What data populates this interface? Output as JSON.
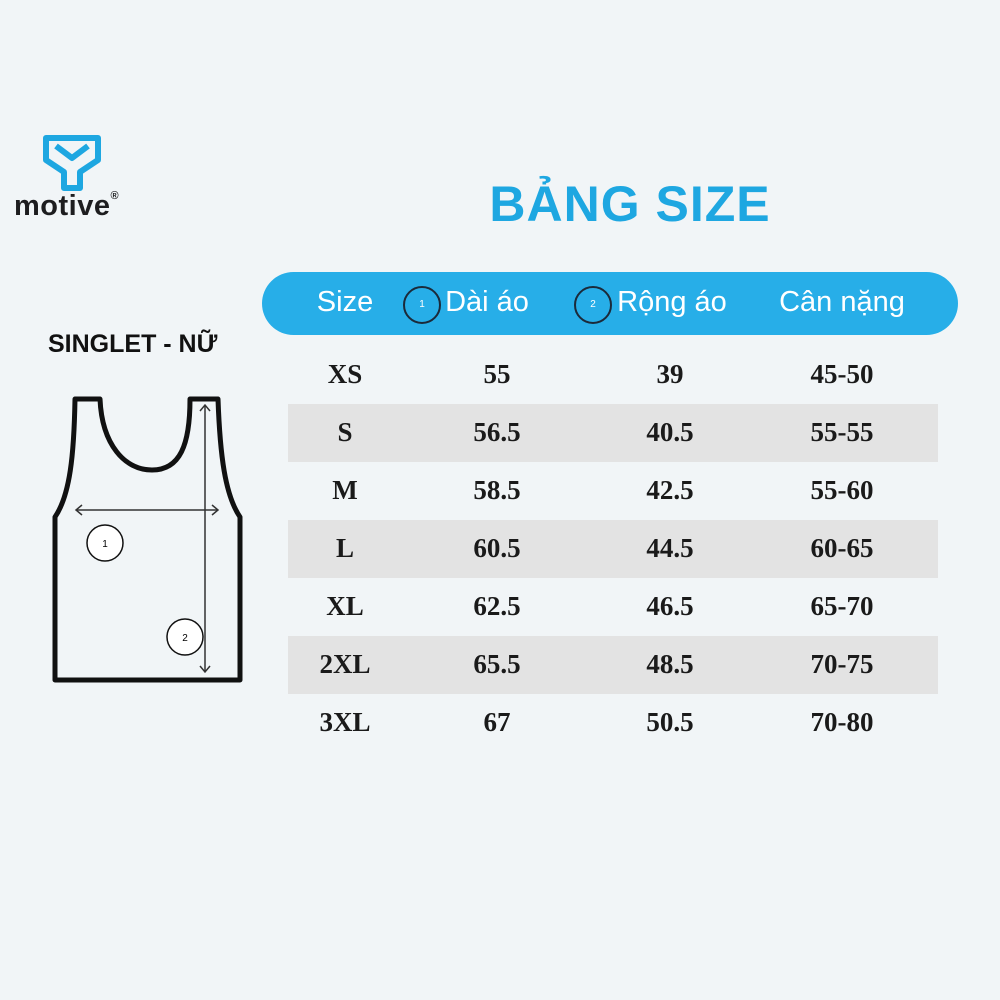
{
  "brand": {
    "name": "motive",
    "mark": "®"
  },
  "title": "BẢNG SIZE",
  "product": "SINGLET - NỮ",
  "diagram": {
    "markers": [
      "1",
      "2"
    ]
  },
  "table": {
    "header": [
      "Size",
      "Dài áo",
      "Rộng áo",
      "Cân nặng"
    ],
    "header_markers": [
      "1",
      "2"
    ],
    "rows": [
      [
        "XS",
        55,
        39,
        "45-50"
      ],
      [
        "S",
        56.5,
        40.5,
        "55-55"
      ],
      [
        "M",
        58.5,
        42.5,
        "55-60"
      ],
      [
        "L",
        60.5,
        44.5,
        "60-65"
      ],
      [
        "XL",
        62.5,
        46.5,
        "65-70"
      ],
      [
        "2XL",
        65.5,
        48.5,
        "70-75"
      ],
      [
        "3XL",
        67,
        50.5,
        "70-80"
      ]
    ]
  }
}
